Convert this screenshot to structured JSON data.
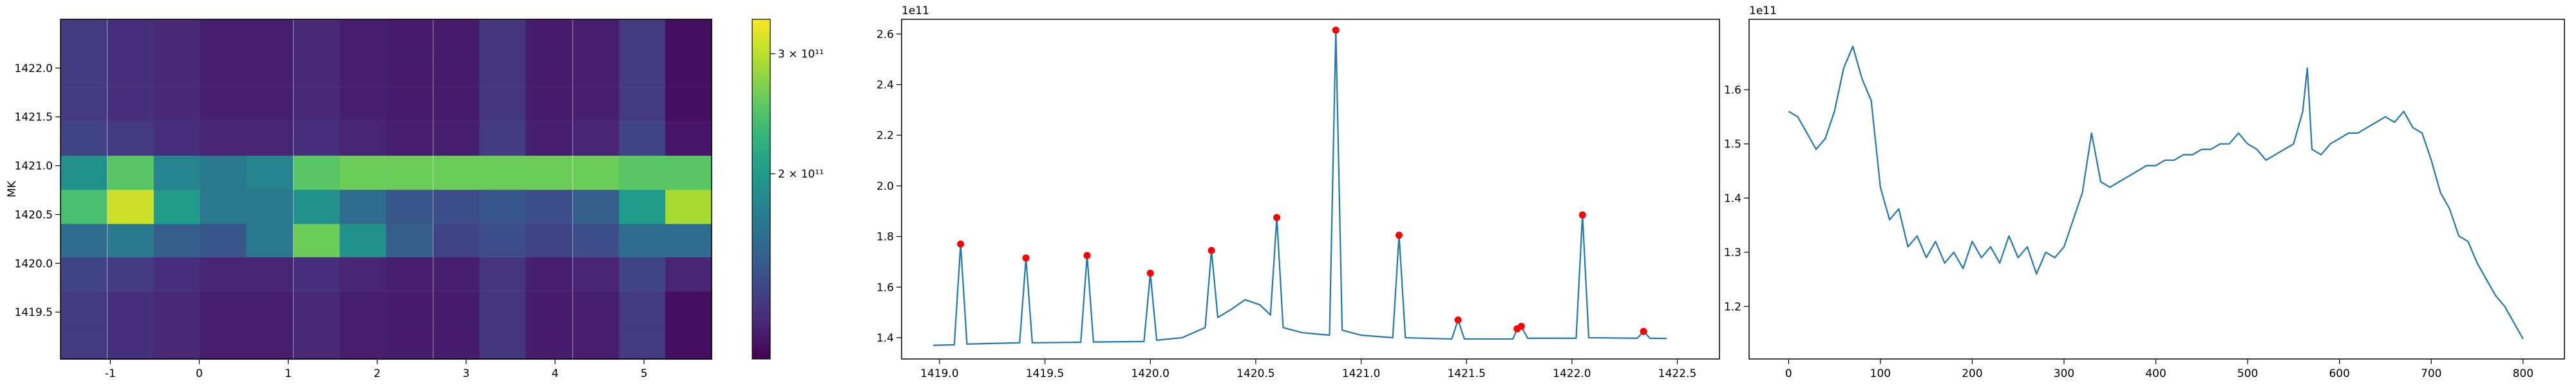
{
  "chart_data": [
    {
      "type": "heatmap",
      "colormap": "viridis",
      "ylabel": "MK",
      "x": [
        -1.3,
        -0.77,
        -0.25,
        0.27,
        0.79,
        1.32,
        1.84,
        2.36,
        2.89,
        3.41,
        3.93,
        4.46,
        4.98,
        5.5
      ],
      "y": [
        1419.19,
        1419.54,
        1419.89,
        1420.24,
        1420.58,
        1420.93,
        1421.28,
        1421.63,
        1421.98,
        1422.33
      ],
      "z": [
        [
          130000000000.0,
          125000000000.0,
          122000000000.0,
          118000000000.0,
          118000000000.0,
          122000000000.0,
          118000000000.0,
          117000000000.0,
          117000000000.0,
          128000000000.0,
          117000000000.0,
          118000000000.0,
          130000000000.0,
          112000000000.0
        ],
        [
          130000000000.0,
          125000000000.0,
          122000000000.0,
          118000000000.0,
          118000000000.0,
          122000000000.0,
          118000000000.0,
          117000000000.0,
          117000000000.0,
          128000000000.0,
          117000000000.0,
          118000000000.0,
          130000000000.0,
          112000000000.0
        ],
        [
          135000000000.0,
          130000000000.0,
          125000000000.0,
          120000000000.0,
          120000000000.0,
          125000000000.0,
          120000000000.0,
          118000000000.0,
          118000000000.0,
          128000000000.0,
          118000000000.0,
          120000000000.0,
          135000000000.0,
          120000000000.0
        ],
        [
          160000000000.0,
          170000000000.0,
          150000000000.0,
          145000000000.0,
          170000000000.0,
          260000000000.0,
          190000000000.0,
          150000000000.0,
          135000000000.0,
          140000000000.0,
          135000000000.0,
          140000000000.0,
          160000000000.0,
          160000000000.0
        ],
        [
          240000000000.0,
          310000000000.0,
          200000000000.0,
          170000000000.0,
          170000000000.0,
          190000000000.0,
          160000000000.0,
          145000000000.0,
          140000000000.0,
          145000000000.0,
          140000000000.0,
          150000000000.0,
          200000000000.0,
          290000000000.0
        ],
        [
          190000000000.0,
          250000000000.0,
          180000000000.0,
          170000000000.0,
          180000000000.0,
          250000000000.0,
          260000000000.0,
          260000000000.0,
          260000000000.0,
          260000000000.0,
          260000000000.0,
          260000000000.0,
          250000000000.0,
          250000000000.0
        ],
        [
          135000000000.0,
          130000000000.0,
          125000000000.0,
          120000000000.0,
          120000000000.0,
          125000000000.0,
          120000000000.0,
          118000000000.0,
          118000000000.0,
          130000000000.0,
          118000000000.0,
          120000000000.0,
          135000000000.0,
          115000000000.0
        ],
        [
          130000000000.0,
          125000000000.0,
          122000000000.0,
          118000000000.0,
          118000000000.0,
          122000000000.0,
          118000000000.0,
          117000000000.0,
          117000000000.0,
          128000000000.0,
          117000000000.0,
          118000000000.0,
          130000000000.0,
          112000000000.0
        ],
        [
          130000000000.0,
          125000000000.0,
          122000000000.0,
          118000000000.0,
          118000000000.0,
          122000000000.0,
          118000000000.0,
          117000000000.0,
          117000000000.0,
          128000000000.0,
          117000000000.0,
          118000000000.0,
          130000000000.0,
          112000000000.0
        ],
        [
          130000000000.0,
          125000000000.0,
          122000000000.0,
          118000000000.0,
          118000000000.0,
          122000000000.0,
          118000000000.0,
          117000000000.0,
          117000000000.0,
          128000000000.0,
          117000000000.0,
          118000000000.0,
          130000000000.0,
          112000000000.0
        ]
      ],
      "xlim": [
        -1.56,
        5.76
      ],
      "ylim": [
        1419.02,
        1422.5
      ],
      "xticks": [
        -1,
        0,
        1,
        2,
        3,
        4,
        5
      ],
      "yticks": [
        1419.5,
        {
          "value": 1420,
          "label": "1420.0"
        },
        1420.5,
        {
          "value": 1421,
          "label": "1421.0"
        },
        1421.5,
        {
          "value": 1422,
          "label": "1422.0"
        }
      ],
      "colorbar": {
        "scale": "log",
        "lim": [
          107000000000.0,
          337000000000.0
        ],
        "ticks": [
          {
            "value": 200000000000.0,
            "label": "2 × 10¹¹"
          },
          {
            "value": 300000000000.0,
            "label": "3 × 10¹¹"
          }
        ]
      }
    },
    {
      "type": "line",
      "y_offset_label": "1e11",
      "series": [
        {
          "color": "#1f77b4",
          "x": [
            1418.97,
            1419.07,
            1419.1,
            1419.13,
            1419.38,
            1419.41,
            1419.44,
            1419.67,
            1419.7,
            1419.73,
            1419.97,
            1420.0,
            1420.03,
            1420.15,
            1420.26,
            1420.29,
            1420.32,
            1420.38,
            1420.45,
            1420.52,
            1420.57,
            1420.6,
            1420.63,
            1420.72,
            1420.85,
            1420.88,
            1420.91,
            1421.0,
            1421.15,
            1421.18,
            1421.21,
            1421.43,
            1421.46,
            1421.49,
            1421.72,
            1421.74,
            1421.76,
            1421.79,
            1422.02,
            1422.05,
            1422.08,
            1422.31,
            1422.34,
            1422.37,
            1422.45
          ],
          "values": [
            1.37,
            1.372,
            1.77,
            1.375,
            1.38,
            1.715,
            1.38,
            1.382,
            1.725,
            1.383,
            1.385,
            1.655,
            1.39,
            1.4,
            1.44,
            1.745,
            1.48,
            1.51,
            1.55,
            1.53,
            1.49,
            1.875,
            1.44,
            1.42,
            1.41,
            2.615,
            1.43,
            1.41,
            1.4,
            1.805,
            1.4,
            1.395,
            1.47,
            1.395,
            1.395,
            1.435,
            1.445,
            1.398,
            1.398,
            1.885,
            1.4,
            1.398,
            1.425,
            1.398,
            1.397
          ]
        },
        {
          "color": "#ff0000",
          "style": "points",
          "x": [
            1419.1,
            1419.41,
            1419.7,
            1420.0,
            1420.29,
            1420.6,
            1420.88,
            1421.18,
            1421.46,
            1421.74,
            1421.76,
            1422.05,
            1422.34
          ],
          "values": [
            1.77,
            1.715,
            1.725,
            1.655,
            1.745,
            1.875,
            2.615,
            1.805,
            1.47,
            1.435,
            1.445,
            1.885,
            1.425
          ]
        }
      ],
      "xlim": [
        1418.82,
        1422.7
      ],
      "ylim": [
        1.316,
        2.658
      ],
      "xticks": [
        {
          "value": 1419,
          "label": "1419.0"
        },
        1419.5,
        {
          "value": 1420,
          "label": "1420.0"
        },
        1420.5,
        {
          "value": 1421,
          "label": "1421.0"
        },
        1421.5,
        {
          "value": 1422,
          "label": "1422.0"
        },
        1422.5
      ],
      "yticks": [
        1.4,
        1.6,
        1.8,
        {
          "value": 2,
          "label": "2.0"
        },
        2.2,
        2.4,
        2.6
      ]
    },
    {
      "type": "line",
      "y_offset_label": "1e11",
      "series": [
        {
          "color": "#1f77b4",
          "x": [
            0,
            10,
            20,
            30,
            40,
            50,
            60,
            70,
            80,
            90,
            100,
            110,
            120,
            130,
            140,
            150,
            160,
            170,
            180,
            190,
            200,
            210,
            220,
            230,
            240,
            250,
            260,
            270,
            280,
            290,
            300,
            310,
            320,
            330,
            340,
            350,
            360,
            370,
            380,
            390,
            400,
            410,
            420,
            430,
            440,
            450,
            460,
            470,
            480,
            490,
            500,
            510,
            520,
            530,
            540,
            550,
            560,
            565,
            570,
            580,
            590,
            600,
            610,
            620,
            630,
            640,
            650,
            660,
            670,
            680,
            690,
            700,
            710,
            720,
            730,
            740,
            750,
            760,
            770,
            780,
            790,
            800
          ],
          "values": [
            1.56,
            1.55,
            1.52,
            1.49,
            1.51,
            1.56,
            1.64,
            1.68,
            1.62,
            1.58,
            1.42,
            1.36,
            1.38,
            1.31,
            1.33,
            1.29,
            1.32,
            1.28,
            1.3,
            1.27,
            1.32,
            1.29,
            1.31,
            1.28,
            1.33,
            1.29,
            1.31,
            1.26,
            1.3,
            1.29,
            1.31,
            1.36,
            1.41,
            1.52,
            1.43,
            1.42,
            1.43,
            1.44,
            1.45,
            1.46,
            1.46,
            1.47,
            1.47,
            1.48,
            1.48,
            1.49,
            1.49,
            1.5,
            1.5,
            1.52,
            1.5,
            1.49,
            1.47,
            1.48,
            1.49,
            1.5,
            1.56,
            1.64,
            1.49,
            1.48,
            1.5,
            1.51,
            1.52,
            1.52,
            1.53,
            1.54,
            1.55,
            1.54,
            1.56,
            1.53,
            1.52,
            1.47,
            1.41,
            1.38,
            1.33,
            1.32,
            1.28,
            1.25,
            1.22,
            1.2,
            1.17,
            1.14
          ]
        }
      ],
      "xlim": [
        -43,
        845
      ],
      "ylim": [
        1.103,
        1.73
      ],
      "xticks": [
        0,
        100,
        200,
        300,
        400,
        500,
        600,
        700,
        800
      ],
      "yticks": [
        1.2,
        1.3,
        1.4,
        1.5,
        1.6
      ]
    }
  ]
}
